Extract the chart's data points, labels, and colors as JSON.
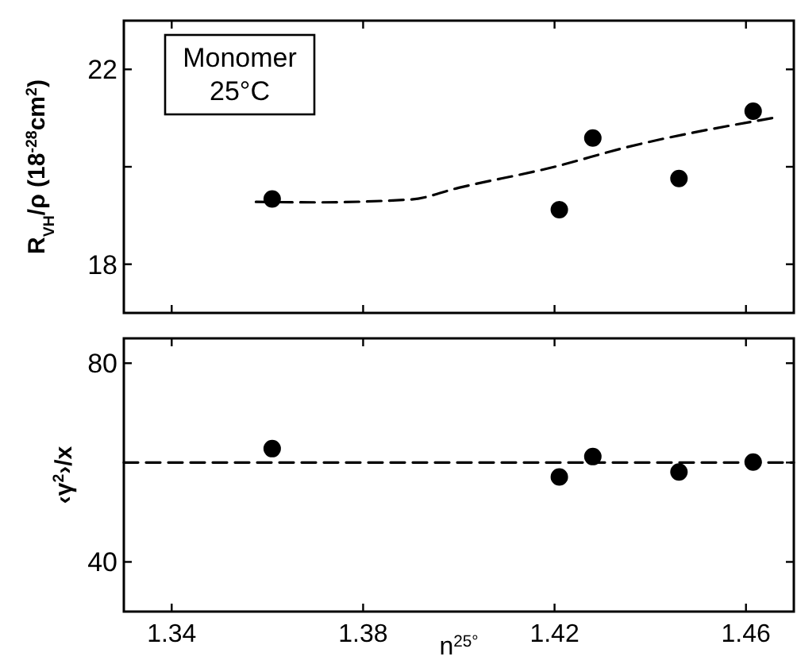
{
  "chart_data": [
    {
      "type": "scatter",
      "ylabel": "R$_{VH}$/ρ (18$^{-28}$cm$^{2}$)",
      "annotations": [
        "Monomer\n25°C"
      ],
      "xlim": [
        1.33,
        1.47
      ],
      "xticks": [
        {
          "value": 1.34,
          "label": null
        },
        {
          "value": 1.38,
          "label": null
        },
        {
          "value": 1.42,
          "label": null
        },
        {
          "value": 1.46,
          "label": null
        }
      ],
      "ylim": [
        17,
        23
      ],
      "yticks": [
        18,
        {
          "value": 20,
          "label": null
        },
        22
      ],
      "tick_labels": "y",
      "marker": "circle",
      "grid": false,
      "series": [
        {
          "color": "#000000",
          "x": [
            1.361,
            1.421,
            1.428,
            1.446,
            1.4615
          ],
          "values": [
            19.34,
            19.12,
            20.59,
            19.76,
            21.14
          ]
        },
        {
          "type": "line",
          "color": "#000000",
          "line_style": "dashed",
          "marker": "none",
          "x": [
            1.3576,
            1.37,
            1.39,
            1.4,
            1.42,
            1.435,
            1.4655
          ],
          "values": [
            19.28,
            19.27,
            19.33,
            19.57,
            20.0,
            20.4,
            21.0
          ]
        }
      ]
    },
    {
      "type": "scatter",
      "ylabel": "‹γ$^{2}$›/x",
      "xlabel": "n$^{25°}$",
      "xlim": [
        1.33,
        1.47
      ],
      "xticks": [
        1.34,
        1.38,
        1.42,
        1.46
      ],
      "ylim": [
        30,
        85
      ],
      "yticks": [
        40,
        {
          "value": 60,
          "label": null
        },
        80
      ],
      "marker": "circle",
      "grid": false,
      "series": [
        {
          "color": "#000000",
          "x": [
            1.361,
            1.421,
            1.428,
            1.446,
            1.4615
          ],
          "values": [
            62.8,
            57.1,
            61.2,
            58.1,
            60.1
          ]
        },
        {
          "type": "line",
          "color": "#000000",
          "line_style": "dashed",
          "marker": "none",
          "x": [
            1.33,
            1.47
          ],
          "values": [
            60.0,
            60.0
          ]
        }
      ]
    }
  ]
}
